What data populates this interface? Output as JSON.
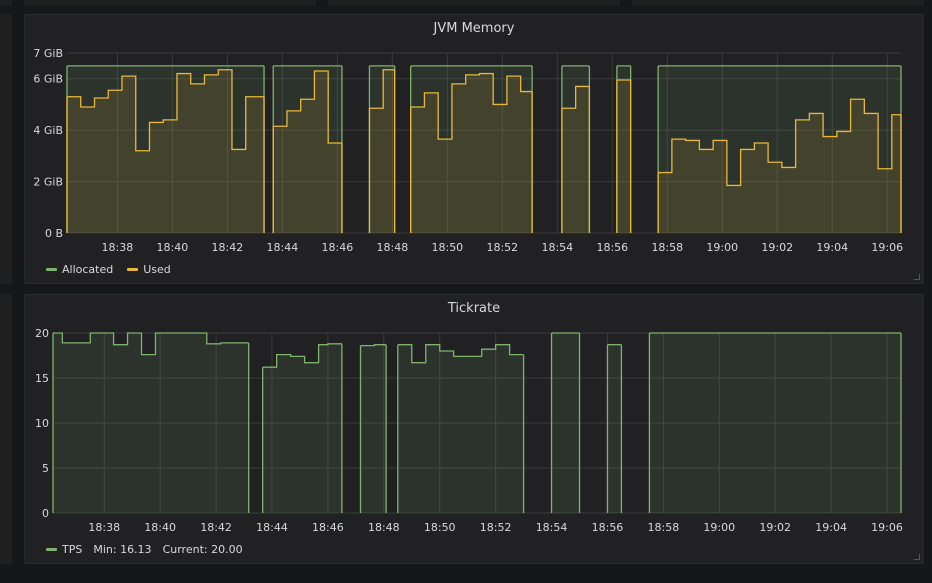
{
  "colors": {
    "background": "#161719",
    "panel": "#212124",
    "grid": "#3a3a3c",
    "allocated": "#7eb26d",
    "used": "#eab839",
    "tps": "#7eb26d"
  },
  "panels": {
    "memory": {
      "title": "JVM Memory",
      "legend": {
        "allocated": "Allocated",
        "used": "Used"
      }
    },
    "tickrate": {
      "title": "Tickrate",
      "legend": {
        "tps": "TPS",
        "min": "Min: 16.13",
        "current": "Current: 20.00"
      }
    }
  },
  "chart_data": [
    {
      "type": "area",
      "title": "JVM Memory",
      "xlabel": "",
      "ylabel": "",
      "xlim": [
        "18:36:10",
        "19:06:30"
      ],
      "ylim": [
        0,
        7
      ],
      "y_ticks": [
        0,
        2,
        4,
        6,
        7
      ],
      "y_tick_labels": [
        "0 B",
        "2 GiB",
        "4 GiB",
        "6 GiB",
        "7 GiB"
      ],
      "x_ticks": [
        "18:38",
        "18:40",
        "18:42",
        "18:44",
        "18:46",
        "18:48",
        "18:50",
        "18:52",
        "18:54",
        "18:56",
        "18:58",
        "19:00",
        "19:02",
        "19:04",
        "19:06"
      ],
      "grid": true,
      "legend_position": "bottom-left",
      "series": [
        {
          "name": "Allocated",
          "segments": [
            {
              "x": [
                "18:36:10",
                "18:43:20"
              ],
              "y": [
                6.5,
                6.5
              ]
            },
            {
              "x": [
                "18:43:40",
                "18:46:10"
              ],
              "y": [
                6.5,
                6.5
              ]
            },
            {
              "x": [
                "18:47:10",
                "18:48:05"
              ],
              "y": [
                6.5,
                6.5
              ]
            },
            {
              "x": [
                "18:48:40",
                "18:53:05"
              ],
              "y": [
                6.5,
                6.5
              ]
            },
            {
              "x": [
                "18:54:10",
                "18:55:10"
              ],
              "y": [
                6.5,
                6.5
              ]
            },
            {
              "x": [
                "18:56:10",
                "18:56:40"
              ],
              "y": [
                6.5,
                6.5
              ]
            },
            {
              "x": [
                "18:57:40",
                "19:06:30"
              ],
              "y": [
                6.5,
                6.5
              ]
            }
          ]
        },
        {
          "name": "Used",
          "segments": [
            {
              "x": [
                "18:36:10",
                "18:36:40",
                "18:37:10",
                "18:37:40",
                "18:38:10",
                "18:38:40",
                "18:39:10",
                "18:39:40",
                "18:40:10",
                "18:40:40",
                "18:41:10",
                "18:41:40",
                "18:42:10",
                "18:42:40",
                "18:43:20"
              ],
              "y": [
                5.3,
                4.9,
                5.25,
                5.55,
                6.1,
                3.2,
                4.3,
                4.4,
                6.2,
                5.8,
                6.15,
                6.35,
                3.25,
                5.3,
                5.3
              ]
            },
            {
              "x": [
                "18:43:40",
                "18:44:10",
                "18:44:40",
                "18:45:10",
                "18:45:40",
                "18:46:10"
              ],
              "y": [
                4.15,
                4.75,
                5.2,
                6.3,
                3.5,
                3.5
              ]
            },
            {
              "x": [
                "18:47:10",
                "18:47:40",
                "18:48:05"
              ],
              "y": [
                4.85,
                6.35,
                6.35
              ]
            },
            {
              "x": [
                "18:48:40",
                "18:49:10",
                "18:49:40",
                "18:50:10",
                "18:50:40",
                "18:51:10",
                "18:51:40",
                "18:52:10",
                "18:52:40",
                "18:53:05"
              ],
              "y": [
                4.9,
                5.45,
                3.65,
                5.8,
                6.15,
                6.2,
                5.0,
                6.1,
                5.5,
                5.5
              ]
            },
            {
              "x": [
                "18:54:10",
                "18:54:40",
                "18:55:10"
              ],
              "y": [
                4.85,
                5.7,
                5.7
              ]
            },
            {
              "x": [
                "18:56:10",
                "18:56:40"
              ],
              "y": [
                5.95,
                5.95
              ]
            },
            {
              "x": [
                "18:57:40",
                "18:58:10",
                "18:58:40",
                "18:59:10",
                "18:59:40",
                "19:00:10",
                "19:00:40",
                "19:01:10",
                "19:01:40",
                "19:02:10",
                "19:02:40",
                "19:03:10",
                "19:03:40",
                "19:04:10",
                "19:04:40",
                "19:05:10",
                "19:05:40",
                "19:06:10",
                "19:06:30"
              ],
              "y": [
                2.35,
                3.65,
                3.6,
                3.25,
                3.6,
                1.85,
                3.25,
                3.5,
                2.75,
                2.55,
                4.4,
                4.65,
                3.75,
                3.95,
                5.2,
                4.65,
                2.5,
                4.6,
                4.6
              ]
            }
          ]
        }
      ]
    },
    {
      "type": "area",
      "title": "Tickrate",
      "xlabel": "",
      "ylabel": "",
      "xlim": [
        "18:36:10",
        "19:06:30"
      ],
      "ylim": [
        0,
        20
      ],
      "y_ticks": [
        0,
        5,
        10,
        15,
        20
      ],
      "y_tick_labels": [
        "0",
        "5",
        "10",
        "15",
        "20"
      ],
      "x_ticks": [
        "18:38",
        "18:40",
        "18:42",
        "18:44",
        "18:46",
        "18:48",
        "18:50",
        "18:52",
        "18:54",
        "18:56",
        "18:58",
        "19:00",
        "19:02",
        "19:04",
        "19:06"
      ],
      "grid": true,
      "legend_position": "bottom-left",
      "series": [
        {
          "name": "TPS",
          "min": 16.13,
          "current": 20.0,
          "segments": [
            {
              "x": [
                "18:36:10",
                "18:36:30",
                "18:37:30",
                "18:38:20",
                "18:38:50",
                "18:39:20",
                "18:39:50",
                "18:41:40",
                "18:42:10",
                "18:43:10"
              ],
              "y": [
                20.0,
                18.9,
                20.0,
                18.7,
                20.0,
                17.6,
                20.0,
                18.8,
                18.9,
                18.9
              ]
            },
            {
              "x": [
                "18:43:40",
                "18:44:10",
                "18:44:40",
                "18:45:10",
                "18:45:40",
                "18:46:00",
                "18:46:30"
              ],
              "y": [
                16.2,
                17.6,
                17.4,
                16.7,
                18.7,
                18.8,
                18.8
              ]
            },
            {
              "x": [
                "18:47:10",
                "18:47:40",
                "18:48:05"
              ],
              "y": [
                18.6,
                18.7,
                18.7
              ]
            },
            {
              "x": [
                "18:48:30",
                "18:49:00",
                "18:49:30",
                "18:50:00",
                "18:50:30",
                "18:51:00",
                "18:51:30",
                "18:52:00",
                "18:52:30",
                "18:53:00"
              ],
              "y": [
                18.7,
                16.7,
                18.7,
                18.0,
                17.4,
                17.4,
                18.2,
                18.7,
                17.6,
                17.6
              ]
            },
            {
              "x": [
                "18:54:00",
                "18:55:00"
              ],
              "y": [
                20.0,
                20.0
              ]
            },
            {
              "x": [
                "18:56:00",
                "18:56:30"
              ],
              "y": [
                18.7,
                18.7
              ]
            },
            {
              "x": [
                "18:57:30",
                "19:06:30"
              ],
              "y": [
                20.0,
                20.0
              ]
            }
          ]
        }
      ]
    }
  ]
}
